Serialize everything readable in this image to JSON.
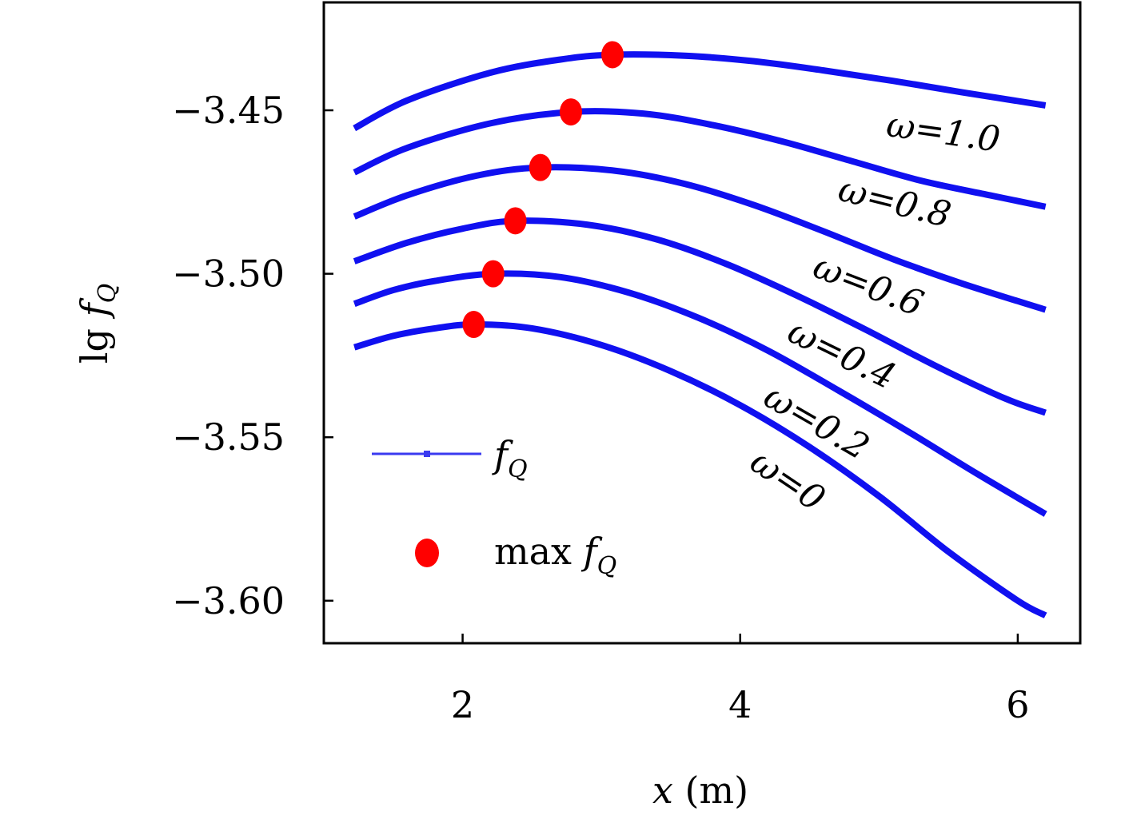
{
  "chart_data": {
    "type": "line",
    "title": "",
    "xlabel": "x (m)",
    "xlabel_var": "x",
    "xlabel_unit": "(m)",
    "ylabel": "lg f_Q",
    "ylabel_prefix": "lg",
    "ylabel_var": "f",
    "ylabel_sub": "Q",
    "xlim": [
      1.0,
      6.45
    ],
    "ylim": [
      -3.613,
      -3.417
    ],
    "xticks": [
      2,
      4,
      6
    ],
    "xtick_labels": [
      "2",
      "4",
      "6"
    ],
    "yticks": [
      -3.45,
      -3.5,
      -3.55,
      -3.6
    ],
    "ytick_labels": [
      "−3.45",
      "−3.50",
      "−3.55",
      "−3.60"
    ],
    "grid": false,
    "legend": {
      "placement": "lower-left",
      "entries": [
        {
          "label": "f",
          "sub": "Q",
          "marker": "line",
          "color": "#3a3af0"
        },
        {
          "label": "max f",
          "prefix": "max ",
          "var": "f",
          "sub": "Q",
          "marker": "dot",
          "color": "#ff0000"
        }
      ]
    },
    "line_color": "#1010f0",
    "max_color": "#ff0000",
    "series": [
      {
        "name": "ω=0",
        "label": "ω=0",
        "x": [
          1.22,
          1.5,
          1.8,
          2.08,
          2.5,
          3.0,
          3.5,
          4.0,
          4.5,
          5.0,
          5.5,
          6.0,
          6.2
        ],
        "y": [
          -3.5225,
          -3.519,
          -3.5167,
          -3.5155,
          -3.5167,
          -3.5218,
          -3.5298,
          -3.5402,
          -3.553,
          -3.568,
          -3.585,
          -3.6,
          -3.6045
        ],
        "max": {
          "x": 2.08,
          "y": -3.5155
        }
      },
      {
        "name": "ω=0.2",
        "label": "ω=0.2",
        "x": [
          1.22,
          1.5,
          1.8,
          2.22,
          2.7,
          3.2,
          3.7,
          4.2,
          4.7,
          5.2,
          5.7,
          6.2
        ],
        "y": [
          -3.5092,
          -3.505,
          -3.5022,
          -3.5,
          -3.501,
          -3.5058,
          -3.5135,
          -3.5235,
          -3.5355,
          -3.548,
          -3.561,
          -3.5735
        ],
        "max": {
          "x": 2.22,
          "y": -3.5
        }
      },
      {
        "name": "ω=0.4",
        "label": "ω=0.4",
        "x": [
          1.22,
          1.6,
          2.0,
          2.38,
          2.9,
          3.4,
          3.9,
          4.4,
          4.9,
          5.4,
          5.9,
          6.2
        ],
        "y": [
          -3.4962,
          -3.4905,
          -3.4862,
          -3.4838,
          -3.485,
          -3.4895,
          -3.497,
          -3.5065,
          -3.517,
          -3.528,
          -3.538,
          -3.5425
        ],
        "max": {
          "x": 2.38,
          "y": -3.4838
        }
      },
      {
        "name": "ω=0.6",
        "label": "ω=0.6",
        "x": [
          1.22,
          1.6,
          2.1,
          2.56,
          3.1,
          3.6,
          4.1,
          4.6,
          5.1,
          5.6,
          6.2
        ],
        "y": [
          -3.4825,
          -3.476,
          -3.47,
          -3.4675,
          -3.4685,
          -3.4725,
          -3.479,
          -3.487,
          -3.4955,
          -3.503,
          -3.511
        ],
        "max": {
          "x": 2.56,
          "y": -3.4675
        }
      },
      {
        "name": "ω=0.8",
        "label": "ω=0.8",
        "x": [
          1.22,
          1.6,
          2.2,
          2.78,
          3.3,
          3.8,
          4.3,
          4.8,
          5.3,
          5.8,
          6.2
        ],
        "y": [
          -3.469,
          -3.4615,
          -3.454,
          -3.4505,
          -3.451,
          -3.4545,
          -3.4595,
          -3.4655,
          -3.4715,
          -3.476,
          -3.4795
        ],
        "max": {
          "x": 2.78,
          "y": -3.4505
        }
      },
      {
        "name": "ω=1.0",
        "label": "ω=1.0",
        "x": [
          1.22,
          1.6,
          2.2,
          2.7,
          3.08,
          3.6,
          4.1,
          4.6,
          5.1,
          5.6,
          6.2
        ],
        "y": [
          -3.4555,
          -3.447,
          -3.4385,
          -3.4345,
          -3.433,
          -3.4333,
          -3.435,
          -3.4378,
          -3.441,
          -3.4445,
          -3.4485
        ],
        "max": {
          "x": 3.08,
          "y": -3.433
        }
      }
    ]
  }
}
